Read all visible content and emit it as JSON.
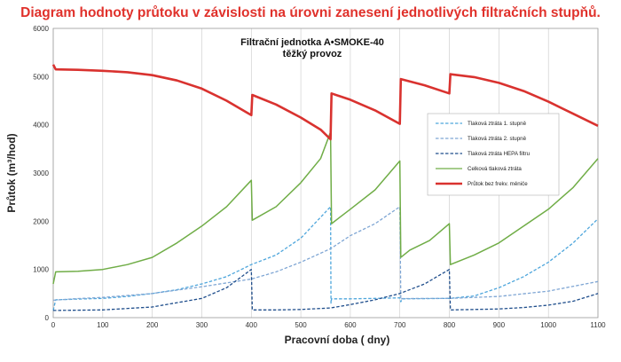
{
  "heading": "Diagram hodnoty průtoku v závislosti na úrovni zanesení jednotlivých filtračních stupňů.",
  "chart_data": {
    "type": "line",
    "title": "Filtrační jednotka A•SMOKE-40",
    "subtitle": "těžký provoz",
    "xlabel": "Pracovní doba  ( dny)",
    "ylabel": "Průtok (m³/hod)",
    "xlim": [
      0,
      1100
    ],
    "ylim": [
      0,
      6000
    ],
    "x_ticks": [
      0,
      100,
      200,
      300,
      400,
      500,
      600,
      700,
      800,
      900,
      1000,
      1100
    ],
    "y_ticks": [
      0,
      1000,
      2000,
      3000,
      4000,
      5000,
      6000
    ],
    "grid": "vertical",
    "legend_position": "right",
    "series": [
      {
        "name": "Tlaková ztráta 1. stupně",
        "color": "#4ea6dc",
        "style": "dashed",
        "points": [
          [
            0,
            150
          ],
          [
            5,
            370
          ],
          [
            50,
            385
          ],
          [
            100,
            400
          ],
          [
            150,
            440
          ],
          [
            200,
            500
          ],
          [
            250,
            580
          ],
          [
            300,
            700
          ],
          [
            350,
            850
          ],
          [
            400,
            1100
          ],
          [
            450,
            1300
          ],
          [
            500,
            1650
          ],
          [
            560,
            2300
          ],
          [
            561,
            300
          ],
          [
            562,
            390
          ],
          [
            600,
            390
          ],
          [
            650,
            400
          ],
          [
            700,
            410
          ],
          [
            702,
            330
          ],
          [
            705,
            390
          ],
          [
            800,
            400
          ],
          [
            850,
            450
          ],
          [
            900,
            620
          ],
          [
            950,
            850
          ],
          [
            1000,
            1150
          ],
          [
            1050,
            1550
          ],
          [
            1100,
            2050
          ]
        ]
      },
      {
        "name": "Tlaková ztráta 2. stupně",
        "color": "#7fa6d4",
        "style": "dashed",
        "points": [
          [
            0,
            360
          ],
          [
            50,
            395
          ],
          [
            100,
            420
          ],
          [
            200,
            500
          ],
          [
            300,
            640
          ],
          [
            400,
            800
          ],
          [
            450,
            950
          ],
          [
            500,
            1150
          ],
          [
            560,
            1430
          ],
          [
            600,
            1700
          ],
          [
            650,
            1950
          ],
          [
            700,
            2300
          ],
          [
            702,
            380
          ],
          [
            705,
            395
          ],
          [
            800,
            400
          ],
          [
            900,
            440
          ],
          [
            1000,
            550
          ],
          [
            1100,
            750
          ]
        ]
      },
      {
        "name": "Tlaková ztráta HEPA filtru",
        "color": "#1f4e8c",
        "style": "dashed",
        "points": [
          [
            0,
            150
          ],
          [
            100,
            160
          ],
          [
            200,
            220
          ],
          [
            300,
            400
          ],
          [
            350,
            620
          ],
          [
            400,
            1000
          ],
          [
            402,
            160
          ],
          [
            450,
            160
          ],
          [
            500,
            170
          ],
          [
            560,
            200
          ],
          [
            600,
            270
          ],
          [
            650,
            370
          ],
          [
            700,
            500
          ],
          [
            750,
            700
          ],
          [
            800,
            1000
          ],
          [
            802,
            160
          ],
          [
            850,
            170
          ],
          [
            900,
            180
          ],
          [
            950,
            210
          ],
          [
            1000,
            260
          ],
          [
            1050,
            340
          ],
          [
            1100,
            500
          ]
        ]
      },
      {
        "name": "Celková tlaková ztráta",
        "color": "#70ad47",
        "style": "solid",
        "points": [
          [
            0,
            700
          ],
          [
            5,
            950
          ],
          [
            50,
            960
          ],
          [
            100,
            1000
          ],
          [
            150,
            1100
          ],
          [
            200,
            1250
          ],
          [
            250,
            1550
          ],
          [
            300,
            1900
          ],
          [
            350,
            2300
          ],
          [
            400,
            2850
          ],
          [
            402,
            2020
          ],
          [
            450,
            2300
          ],
          [
            500,
            2800
          ],
          [
            540,
            3300
          ],
          [
            560,
            3850
          ],
          [
            562,
            1950
          ],
          [
            600,
            2250
          ],
          [
            650,
            2650
          ],
          [
            700,
            3250
          ],
          [
            702,
            1250
          ],
          [
            720,
            1400
          ],
          [
            760,
            1600
          ],
          [
            800,
            1950
          ],
          [
            802,
            1100
          ],
          [
            850,
            1300
          ],
          [
            900,
            1550
          ],
          [
            950,
            1900
          ],
          [
            1000,
            2250
          ],
          [
            1050,
            2700
          ],
          [
            1100,
            3300
          ]
        ]
      },
      {
        "name": "Průtok bez frekv. měniče",
        "color": "#d9322f",
        "style": "solid",
        "points": [
          [
            0,
            5250
          ],
          [
            5,
            5150
          ],
          [
            50,
            5140
          ],
          [
            100,
            5120
          ],
          [
            150,
            5090
          ],
          [
            200,
            5030
          ],
          [
            250,
            4920
          ],
          [
            300,
            4750
          ],
          [
            350,
            4500
          ],
          [
            400,
            4200
          ],
          [
            402,
            4620
          ],
          [
            450,
            4420
          ],
          [
            500,
            4150
          ],
          [
            540,
            3900
          ],
          [
            560,
            3700
          ],
          [
            562,
            4650
          ],
          [
            600,
            4520
          ],
          [
            650,
            4300
          ],
          [
            700,
            4020
          ],
          [
            702,
            4950
          ],
          [
            750,
            4820
          ],
          [
            800,
            4650
          ],
          [
            802,
            5050
          ],
          [
            850,
            4990
          ],
          [
            900,
            4870
          ],
          [
            950,
            4700
          ],
          [
            1000,
            4480
          ],
          [
            1050,
            4230
          ],
          [
            1100,
            3980
          ]
        ]
      }
    ]
  }
}
